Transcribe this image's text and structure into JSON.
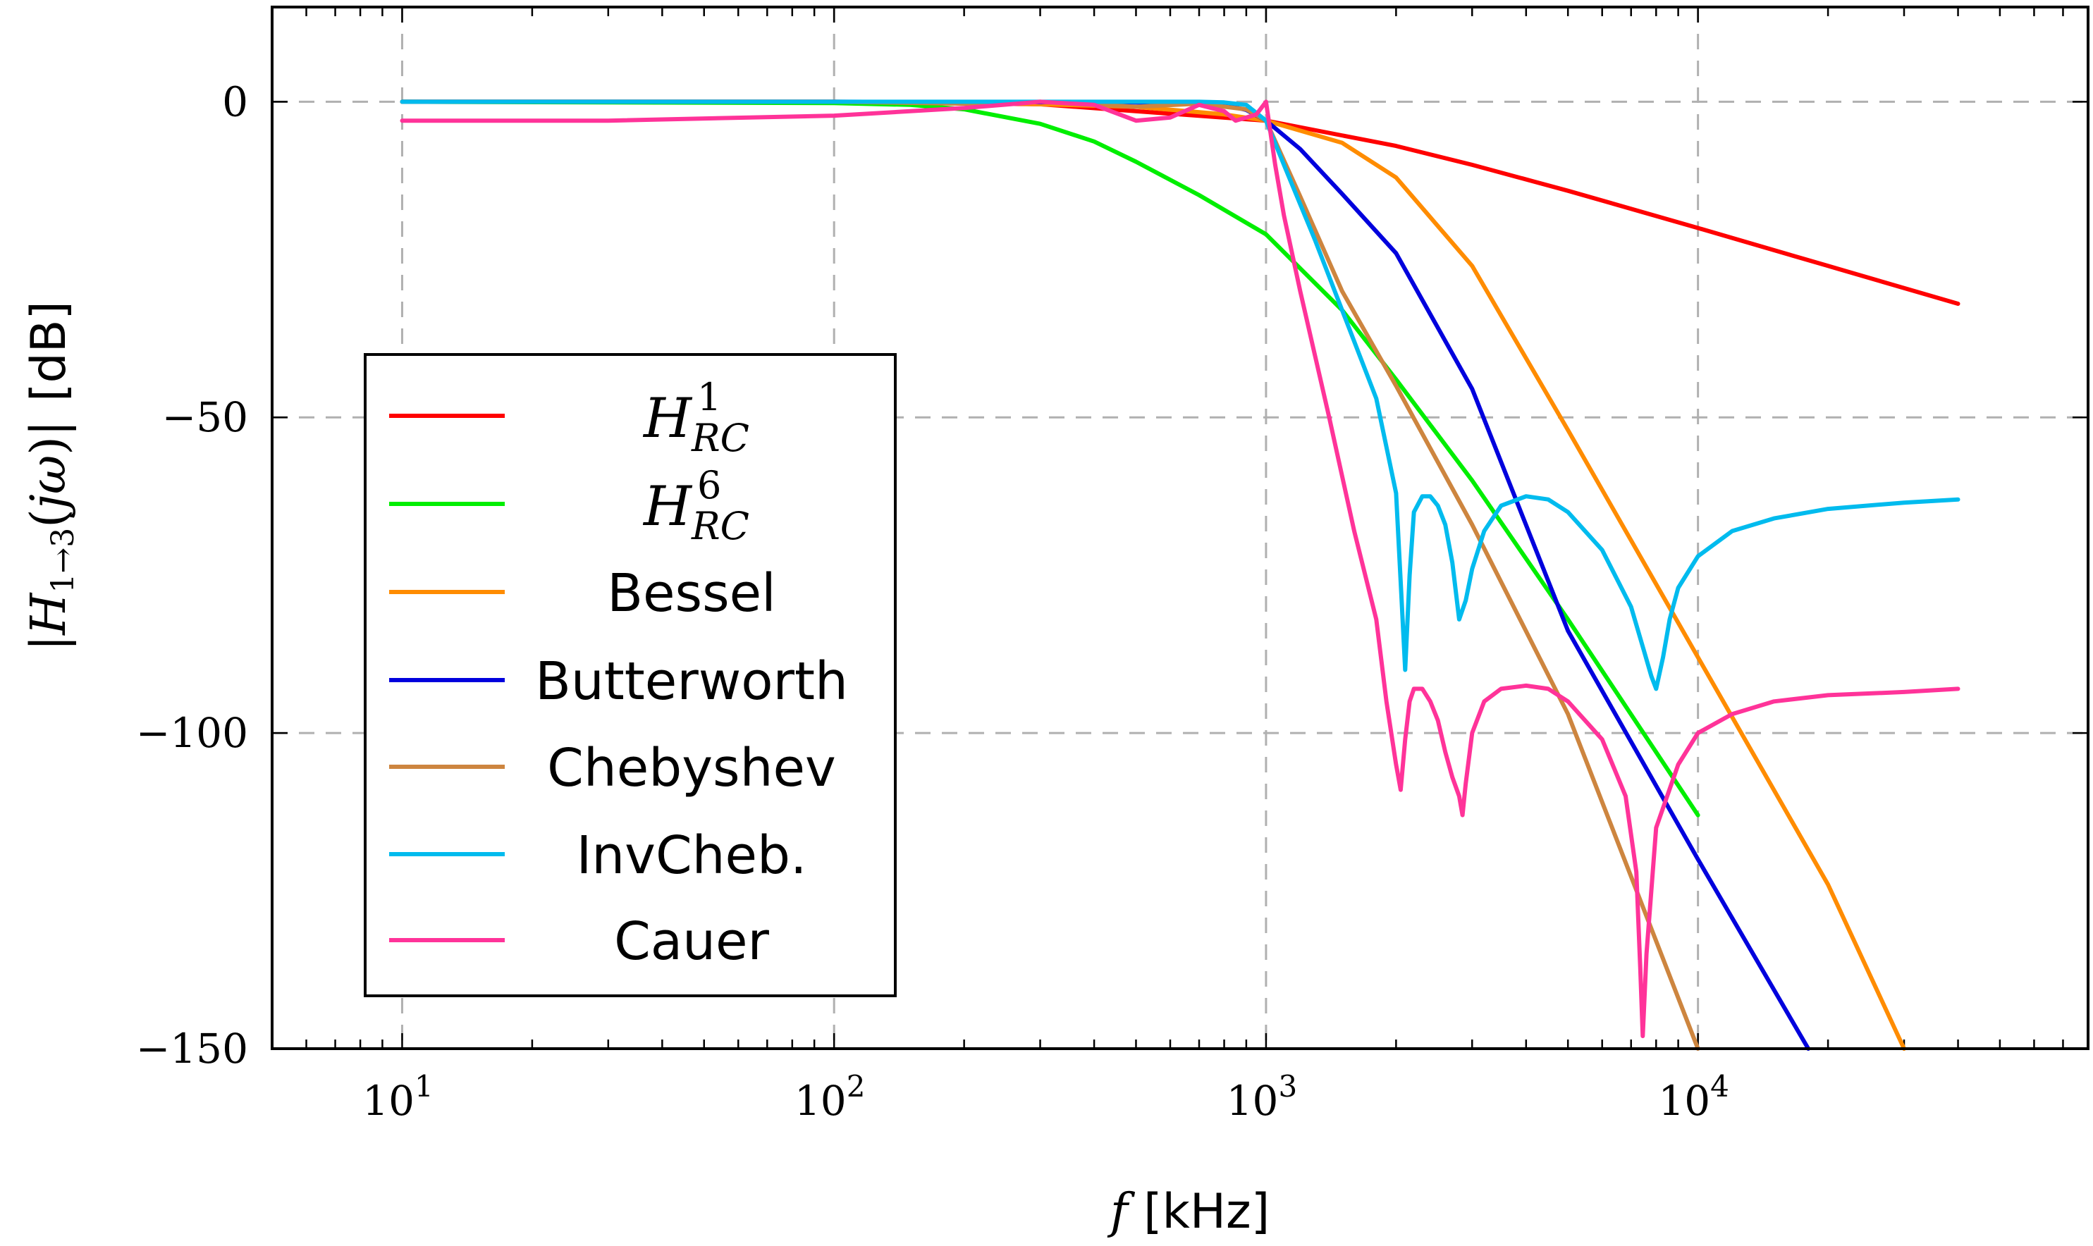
{
  "chart_data": {
    "type": "line",
    "xscale": "log",
    "xlim": [
      5,
      80000
    ],
    "ylim": [
      -150,
      15
    ],
    "grid": true,
    "legend_position": "center-left",
    "xlabel": {
      "symbol": "f",
      "unit": "[kHz]"
    },
    "ylabel": {
      "text": "|H₁→₃(jω)| [dB]",
      "unit": "[dB]"
    },
    "xticks": [
      {
        "value": 10,
        "base": "10",
        "exp": "1"
      },
      {
        "value": 100,
        "base": "10",
        "exp": "2"
      },
      {
        "value": 1000,
        "base": "10",
        "exp": "3"
      },
      {
        "value": 10000,
        "base": "10",
        "exp": "4"
      }
    ],
    "yticks": [
      {
        "value": 0,
        "label": "0"
      },
      {
        "value": -50,
        "label": "−50"
      },
      {
        "value": -100,
        "label": "−100"
      },
      {
        "value": -150,
        "label": "−150"
      }
    ],
    "series": [
      {
        "name": "H¹_RC",
        "color": "#ff0000",
        "x": [
          10,
          100,
          300,
          1000,
          2000,
          3000,
          5000,
          10000,
          20000,
          40000
        ],
        "y": [
          0,
          0,
          -0.4,
          -3,
          -7,
          -10.0,
          -14.1,
          -20.0,
          -26.0,
          -32.0
        ]
      },
      {
        "name": "H⁶_RC",
        "color": "#00ee00",
        "x": [
          10,
          100,
          150,
          200,
          300,
          400,
          500,
          700,
          1000,
          1500,
          2000,
          3000,
          5000,
          10000
        ],
        "y": [
          0,
          -0.2,
          -0.5,
          -1.2,
          -3.5,
          -6.3,
          -9.5,
          -14.8,
          -21,
          -33,
          -44,
          -60,
          -82,
          -113
        ]
      },
      {
        "name": "Bessel",
        "color": "#ff8c00",
        "x": [
          10,
          100,
          200,
          500,
          800,
          1000,
          1500,
          2000,
          3000,
          5000,
          10000,
          20000,
          30000
        ],
        "y": [
          0,
          0,
          -0.1,
          -0.8,
          -2,
          -3,
          -6.5,
          -12,
          -26,
          -52,
          -88,
          -124,
          -150
        ]
      },
      {
        "name": "Butterworth",
        "color": "#0000dd",
        "x": [
          10,
          100,
          500,
          800,
          900,
          1000,
          1200,
          1500,
          2000,
          3000,
          5000,
          10000,
          18000
        ],
        "y": [
          0,
          0,
          -0.1,
          -0.5,
          -1.3,
          -3,
          -7.5,
          -14.6,
          -24,
          -45.5,
          -83.8,
          -120,
          -150
        ]
      },
      {
        "name": "Chebyshev",
        "color": "#cd853f",
        "x": [
          10,
          100,
          200,
          300,
          500,
          700,
          900,
          1000,
          1200,
          1500,
          2000,
          3000,
          5000,
          10000
        ],
        "y": [
          0,
          0,
          -0.3,
          0,
          -0.8,
          -0.3,
          -1.2,
          -3,
          -15,
          -30,
          -45,
          -67,
          -97,
          -150
        ]
      },
      {
        "name": "InvCheb.",
        "color": "#00bbee",
        "x": [
          10,
          100,
          500,
          700,
          800,
          900,
          1000,
          1100,
          1300,
          1500,
          1800,
          2000,
          2050,
          2100,
          2150,
          2200,
          2300,
          2400,
          2500,
          2600,
          2700,
          2800,
          2900,
          3000,
          3200,
          3500,
          4000,
          4500,
          5000,
          6000,
          7000,
          7500,
          7800,
          8000,
          8300,
          8600,
          9000,
          10000,
          12000,
          15000,
          20000,
          30000,
          40000
        ],
        "y": [
          0,
          0,
          0,
          0,
          -0.1,
          -0.5,
          -3,
          -10,
          -22,
          -33,
          -47,
          -62,
          -76,
          -90,
          -75,
          -65,
          -62.5,
          -62.5,
          -64,
          -67,
          -73,
          -82,
          -79,
          -74,
          -68,
          -64,
          -62.5,
          -63,
          -65,
          -71,
          -80,
          -87,
          -91,
          -93,
          -88,
          -82,
          -77,
          -72,
          -68,
          -66,
          -64.5,
          -63.5,
          -63
        ]
      },
      {
        "name": "Cauer",
        "color": "#ff3399",
        "x": [
          10,
          30,
          100,
          200,
          300,
          400,
          500,
          600,
          700,
          800,
          850,
          900,
          950,
          1000,
          1050,
          1100,
          1200,
          1400,
          1600,
          1800,
          1900,
          2000,
          2050,
          2100,
          2150,
          2200,
          2300,
          2400,
          2500,
          2600,
          2700,
          2800,
          2850,
          2900,
          3000,
          3200,
          3500,
          4000,
          4500,
          5000,
          6000,
          6800,
          7200,
          7350,
          7450,
          7600,
          8000,
          9000,
          10000,
          12000,
          15000,
          20000,
          30000,
          40000
        ],
        "y": [
          -3,
          -3,
          -2.2,
          -1,
          0,
          -0.5,
          -3,
          -2.5,
          -0.5,
          -1.5,
          -3,
          -2.5,
          -2,
          0,
          -10,
          -18,
          -30,
          -50,
          -68,
          -82,
          -95,
          -105,
          -109,
          -101,
          -95,
          -93,
          -93,
          -95,
          -98,
          -103,
          -107,
          -110,
          -113,
          -108,
          -100,
          -95,
          -93,
          -92.5,
          -93,
          -95,
          -101,
          -110,
          -122,
          -137,
          -148,
          -135,
          -115,
          -105,
          -100,
          -97,
          -95,
          -94,
          -93.5,
          -93
        ]
      }
    ]
  },
  "legend": {
    "items": [
      {
        "kind": "math",
        "base": "H",
        "sup": "1",
        "sub": "RC"
      },
      {
        "kind": "math",
        "base": "H",
        "sup": "6",
        "sub": "RC"
      },
      {
        "kind": "text",
        "label": "Bessel"
      },
      {
        "kind": "text",
        "label": "Butterworth"
      },
      {
        "kind": "text",
        "label": "Chebyshev"
      },
      {
        "kind": "text",
        "label": "InvCheb."
      },
      {
        "kind": "text",
        "label": "Cauer"
      }
    ]
  }
}
